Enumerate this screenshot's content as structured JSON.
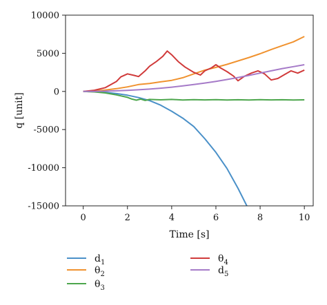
{
  "chart_data": {
    "type": "line",
    "title": "",
    "xlabel": "Time [s]",
    "ylabel": "q [unit]",
    "xlim": [
      -0.8,
      10.4
    ],
    "ylim": [
      -15000,
      10000
    ],
    "xticks": [
      0,
      2,
      4,
      6,
      8,
      10
    ],
    "yticks": [
      -15000,
      -10000,
      -5000,
      0,
      5000,
      10000
    ],
    "xtick_labels": [
      "0",
      "2",
      "4",
      "6",
      "8",
      "10"
    ],
    "ytick_labels": [
      "-15000",
      "-10000",
      "-5000",
      "0",
      "5000",
      "10000"
    ],
    "grid": false,
    "legend_position": "below",
    "series": [
      {
        "name": "d1",
        "label_main": "d",
        "label_sub": "1",
        "color": "#4a90c8",
        "x": [
          0,
          0.5,
          1,
          1.5,
          2,
          2.5,
          3,
          3.5,
          4,
          4.5,
          5,
          5.5,
          6,
          6.5,
          7,
          7.4
        ],
        "y": [
          0,
          -30,
          -120,
          -280,
          -500,
          -800,
          -1200,
          -1800,
          -2600,
          -3500,
          -4600,
          -6200,
          -8000,
          -10100,
          -12700,
          -15000
        ]
      },
      {
        "name": "θ2",
        "label_main": "θ",
        "label_sub": "2",
        "color": "#f0922f",
        "x": [
          0,
          0.5,
          1,
          1.5,
          2,
          2.5,
          3,
          3.5,
          4,
          4.5,
          5,
          5.5,
          6,
          6.5,
          7,
          7.5,
          8,
          8.5,
          9,
          9.5,
          10
        ],
        "y": [
          0,
          60,
          180,
          360,
          600,
          900,
          1050,
          1250,
          1450,
          1800,
          2300,
          2800,
          3150,
          3550,
          4000,
          4450,
          4950,
          5500,
          6000,
          6500,
          7200
        ]
      },
      {
        "name": "θ3",
        "label_main": "θ",
        "label_sub": "3",
        "color": "#4ca64c",
        "x": [
          0,
          0.5,
          1,
          1.5,
          2,
          2.2,
          2.4,
          2.6,
          2.8,
          3,
          3.5,
          4,
          4.5,
          5,
          5.5,
          6,
          6.5,
          7,
          7.5,
          8,
          8.5,
          9,
          9.5,
          10
        ],
        "y": [
          0,
          -60,
          -200,
          -450,
          -780,
          -1000,
          -1150,
          -1000,
          -1180,
          -1050,
          -1100,
          -1050,
          -1120,
          -1080,
          -1110,
          -1070,
          -1120,
          -1090,
          -1130,
          -1080,
          -1110,
          -1090,
          -1120,
          -1100
        ]
      },
      {
        "name": "θ4",
        "label_main": "θ",
        "label_sub": "4",
        "color": "#d03a3a",
        "x": [
          0,
          0.5,
          1,
          1.5,
          1.7,
          2,
          2.3,
          2.5,
          2.8,
          3,
          3.3,
          3.6,
          3.8,
          4,
          4.3,
          4.6,
          5,
          5.3,
          5.5,
          5.8,
          6,
          6.2,
          6.5,
          6.8,
          7,
          7.3,
          7.6,
          7.9,
          8.2,
          8.5,
          8.8,
          9.1,
          9.4,
          9.7,
          10
        ],
        "y": [
          0,
          150,
          500,
          1300,
          1900,
          2300,
          2100,
          1950,
          2700,
          3300,
          3900,
          4600,
          5300,
          4800,
          3900,
          3200,
          2500,
          2150,
          2700,
          3100,
          3500,
          3100,
          2600,
          2000,
          1400,
          2000,
          2400,
          2700,
          2300,
          1500,
          1700,
          2200,
          2700,
          2400,
          2800
        ]
      },
      {
        "name": "d5",
        "label_main": "d",
        "label_sub": "5",
        "color": "#a57ac8",
        "x": [
          0,
          0.5,
          1,
          1.5,
          2,
          2.5,
          3,
          3.5,
          4,
          4.5,
          5,
          5.5,
          6,
          6.5,
          7,
          7.5,
          8,
          8.5,
          9,
          9.5,
          10
        ],
        "y": [
          0,
          10,
          35,
          80,
          140,
          215,
          310,
          420,
          560,
          720,
          900,
          1100,
          1320,
          1560,
          1820,
          2100,
          2400,
          2700,
          3000,
          3250,
          3500
        ]
      }
    ]
  }
}
